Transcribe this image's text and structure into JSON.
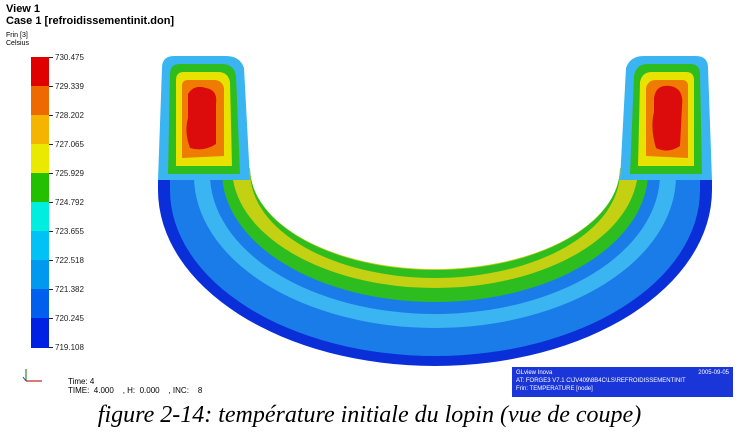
{
  "header": {
    "view_title": "View 1",
    "case_title": "Case 1  [refroidissementinit.don]",
    "field_name": "Frin [3]",
    "field_unit": "Celsius"
  },
  "legend": {
    "values": [
      "730.475",
      "729.339",
      "728.202",
      "727.065",
      "725.929",
      "724.792",
      "723.655",
      "722.518",
      "721.382",
      "720.245",
      "719.108"
    ],
    "colors": [
      "#e10000",
      "#ee6a00",
      "#f4b400",
      "#eaea00",
      "#22c000",
      "#00eee0",
      "#00c2f4",
      "#0099f0",
      "#0060ee",
      "#0020e4"
    ]
  },
  "footer": {
    "time_label": "Time: 4",
    "step_label": "TIME:  4.000    , H:  0.000    , INC:    8"
  },
  "info_panel": {
    "line1": "GLview Inova",
    "date": "2005-09-05",
    "line2": "AT:   FORGE3 V7.1 C\\JV409\\8B4C\\LS\\REFROIDISSEMENTINIT",
    "line3": "Frin:  TEMPERATURE [node]"
  },
  "caption": "figure 2-14: température initiale du lopin (vue de coupe)",
  "mesh_colors": {
    "outer_edge": "#0a2fd8",
    "outer_band": "#1a7ce8",
    "light_band": "#3bb4f2",
    "green_band": "#2dbd1e",
    "inner_core": "#c4d012",
    "yellow_hot": "#e8e200",
    "orange_hot": "#ef7b00",
    "red_hot": "#dc0c0c"
  }
}
